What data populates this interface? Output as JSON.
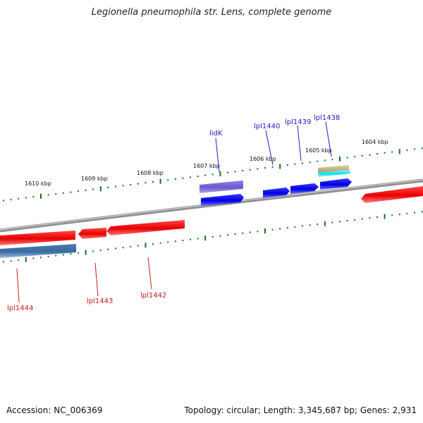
{
  "title": "Legionella pneumophila str. Lens, complete genome",
  "footer": {
    "accession": "Accession: NC_006369",
    "summary": "Topology: circular; Length: 3,345,687 bp; Genes: 2,931"
  },
  "ruler_labels": [
    "1604 kbp",
    "1605 kbp",
    "1606 kbp",
    "1607 kbp",
    "1608 kbp",
    "1609 kbp",
    "1610 kbp"
  ],
  "genes": {
    "forward": [
      "lidK",
      "lpl1440",
      "lpl1439",
      "lpl1438"
    ],
    "reverse": [
      "lpl1444",
      "lpl1443",
      "lpl1442"
    ]
  },
  "colors": {
    "forward_label": "#1a1acc",
    "reverse_label": "#cc1a1a",
    "forward_cds": "#0000ee",
    "reverse_cds": "#ee0000",
    "tick": "#1a6e1a",
    "backbone": "#808080"
  }
}
